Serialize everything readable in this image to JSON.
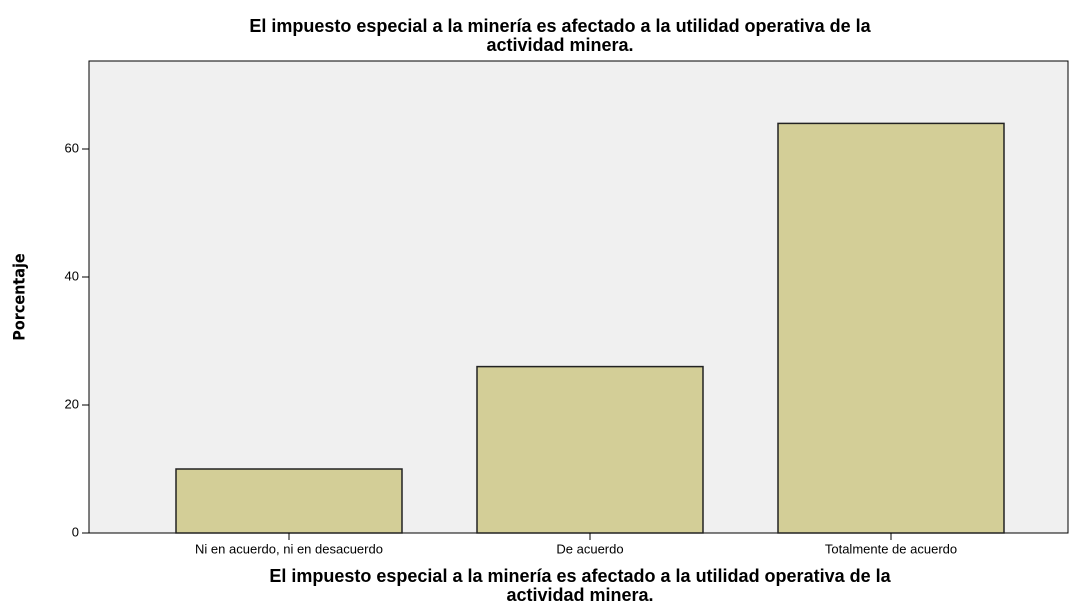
{
  "chart_data": {
    "type": "bar",
    "title": [
      "El impuesto especial a la minería es afectado a la utilidad operativa de la",
      "actividad minera."
    ],
    "x_label": [
      "El impuesto especial a la minería es afectado a la utilidad operativa de la",
      "actividad minera."
    ],
    "y_label": "Porcentaje",
    "categories": [
      "Ni en acuerdo, ni en desacuerdo",
      "De acuerdo",
      "Totalmente de acuerdo"
    ],
    "values": [
      10,
      26,
      64
    ],
    "color": "#d3ce97",
    "ylim": [
      0,
      73.75
    ],
    "yticks": [
      0,
      20,
      40,
      60
    ],
    "grid": false
  }
}
